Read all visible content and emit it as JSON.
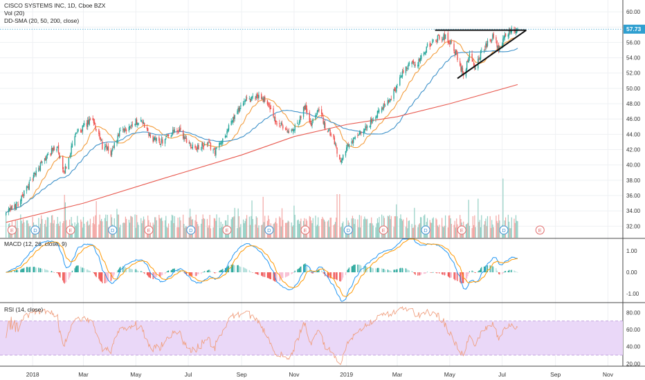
{
  "header": {
    "title": "CISCO SYSTEMS INC, 1D, Cboe BZX",
    "vol_label": "Vol (20)",
    "sma_label": "DD-SMA (20, 50, 200, close)"
  },
  "price_badge": {
    "value": "57.73"
  },
  "macd_panel": {
    "label": "MACD (12, 26, close, 9)"
  },
  "rsi_panel": {
    "label": "RSI (14, close)"
  },
  "colors": {
    "up": "#26a69a",
    "down": "#ef5350",
    "sma20": "#f39c3c",
    "sma50": "#3d91c9",
    "sma200": "#e8594f",
    "macd": "#2196f3",
    "signal": "#ff9800",
    "rsi": "#f0a080",
    "rsi_band": "#ead8f8",
    "badge": "#2f9fd0"
  },
  "chart_data": [
    {
      "type": "candlestick",
      "title": "CISCO SYSTEMS INC, 1D, Cboe BZX",
      "price_axis_ticks": [
        "60.00",
        "58.00",
        "56.00",
        "54.00",
        "52.00",
        "50.00",
        "48.00",
        "46.00",
        "44.00",
        "42.00",
        "40.00",
        "38.00",
        "36.00",
        "34.00",
        "32.00"
      ],
      "ylim": [
        30.5,
        61
      ],
      "x_ticks": [
        "2018",
        "Mar",
        "May",
        "Jul",
        "Sep",
        "Nov",
        "2019",
        "Mar",
        "May",
        "Jul",
        "Sep",
        "Nov"
      ],
      "last_price": 57.73,
      "close_path": [
        [
          "2017-12-01",
          33.6
        ],
        [
          "2017-12-15",
          35.0
        ],
        [
          "2018-01-02",
          38.5
        ],
        [
          "2018-01-15",
          40.8
        ],
        [
          "2018-01-29",
          42.5
        ],
        [
          "2018-02-06",
          38.8
        ],
        [
          "2018-02-12",
          41.0
        ],
        [
          "2018-02-20",
          44.0
        ],
        [
          "2018-03-02",
          45.0
        ],
        [
          "2018-03-12",
          46.0
        ],
        [
          "2018-03-23",
          42.5
        ],
        [
          "2018-04-02",
          41.5
        ],
        [
          "2018-04-10",
          43.8
        ],
        [
          "2018-04-18",
          44.5
        ],
        [
          "2018-04-26",
          45.3
        ],
        [
          "2018-05-07",
          46.0
        ],
        [
          "2018-05-18",
          43.5
        ],
        [
          "2018-05-30",
          43.0
        ],
        [
          "2018-06-08",
          44.0
        ],
        [
          "2018-06-20",
          44.5
        ],
        [
          "2018-07-02",
          42.8
        ],
        [
          "2018-07-12",
          42.2
        ],
        [
          "2018-07-24",
          42.7
        ],
        [
          "2018-08-01",
          41.8
        ],
        [
          "2018-08-10",
          43.3
        ],
        [
          "2018-08-20",
          45.6
        ],
        [
          "2018-08-31",
          47.8
        ],
        [
          "2018-09-10",
          48.5
        ],
        [
          "2018-09-21",
          49.0
        ],
        [
          "2018-10-01",
          48.2
        ],
        [
          "2018-10-10",
          45.5
        ],
        [
          "2018-10-22",
          44.8
        ],
        [
          "2018-10-29",
          44.2
        ],
        [
          "2018-11-06",
          45.8
        ],
        [
          "2018-11-14",
          47.8
        ],
        [
          "2018-11-21",
          45.2
        ],
        [
          "2018-11-29",
          47.5
        ],
        [
          "2018-12-07",
          45.0
        ],
        [
          "2018-12-17",
          43.5
        ],
        [
          "2018-12-24",
          40.6
        ],
        [
          "2019-01-03",
          42.5
        ],
        [
          "2019-01-11",
          43.5
        ],
        [
          "2019-01-22",
          44.5
        ],
        [
          "2019-02-01",
          46.0
        ],
        [
          "2019-02-11",
          47.5
        ],
        [
          "2019-02-22",
          48.8
        ],
        [
          "2019-03-04",
          51.5
        ],
        [
          "2019-03-15",
          53.0
        ],
        [
          "2019-03-26",
          53.5
        ],
        [
          "2019-04-05",
          55.5
        ],
        [
          "2019-04-17",
          56.5
        ],
        [
          "2019-04-26",
          56.8
        ],
        [
          "2019-05-03",
          55.8
        ],
        [
          "2019-05-10",
          54.0
        ],
        [
          "2019-05-17",
          51.8
        ],
        [
          "2019-05-24",
          54.3
        ],
        [
          "2019-05-31",
          52.5
        ],
        [
          "2019-06-07",
          54.8
        ],
        [
          "2019-06-14",
          56.0
        ],
        [
          "2019-06-21",
          56.8
        ],
        [
          "2019-06-28",
          55.0
        ],
        [
          "2019-07-05",
          57.2
        ],
        [
          "2019-07-12",
          57.6
        ],
        [
          "2019-07-19",
          57.73
        ]
      ],
      "sma200_path": [
        [
          "2017-12-01",
          32.5
        ],
        [
          "2018-03-01",
          35.0
        ],
        [
          "2018-06-01",
          38.2
        ],
        [
          "2018-09-01",
          41.3
        ],
        [
          "2018-11-01",
          43.7
        ],
        [
          "2019-01-02",
          45.3
        ],
        [
          "2019-03-01",
          46.3
        ],
        [
          "2019-05-01",
          48.0
        ],
        [
          "2019-07-19",
          50.5
        ]
      ],
      "trendlines": {
        "resistance": [
          [
            "2019-04-14",
            57.6
          ],
          [
            "2019-07-29",
            57.6
          ]
        ],
        "support": [
          [
            "2019-05-10",
            51.3
          ],
          [
            "2019-07-29",
            57.6
          ]
        ]
      },
      "earnings_markers": [
        "E",
        "D",
        "E",
        "D",
        "E",
        "D",
        "E",
        "D",
        "E",
        "D",
        "E",
        "D",
        "E",
        "D",
        "E"
      ],
      "volume_max_date": "2019-07-02"
    },
    {
      "type": "line",
      "title": "MACD (12, 26, close, 9)",
      "y_ticks": [
        "1.00",
        "0.00",
        "-1.00"
      ],
      "ylim": [
        -1.35,
        1.55
      ],
      "series": [
        {
          "name": "MACD"
        },
        {
          "name": "Signal"
        }
      ]
    },
    {
      "type": "line",
      "title": "RSI (14, close)",
      "y_ticks": [
        "80.00",
        "60.00",
        "40.00",
        "20.00"
      ],
      "ylim": [
        17,
        90
      ],
      "bands": [
        30,
        70
      ]
    }
  ]
}
